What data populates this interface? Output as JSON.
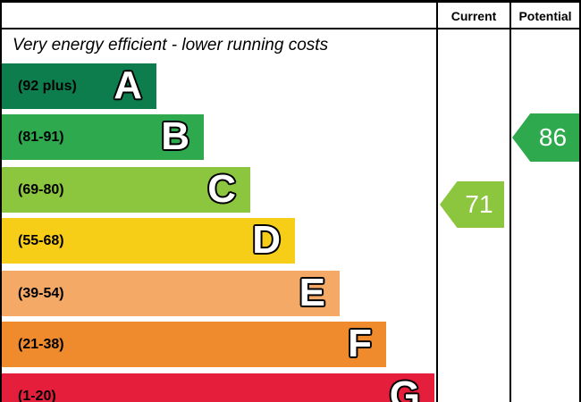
{
  "header": {
    "current_label": "Current",
    "potential_label": "Potential"
  },
  "caption_top": "Very energy efficient - lower running costs",
  "bands": [
    {
      "letter": "A",
      "range": "(92 plus)",
      "color": "#0d7d4d"
    },
    {
      "letter": "B",
      "range": "(81-91)",
      "color": "#2ea94e"
    },
    {
      "letter": "C",
      "range": "(69-80)",
      "color": "#8cc63f"
    },
    {
      "letter": "D",
      "range": "(55-68)",
      "color": "#f7ce17"
    },
    {
      "letter": "E",
      "range": "(39-54)",
      "color": "#f4a967"
    },
    {
      "letter": "F",
      "range": "(21-38)",
      "color": "#ef8a2d"
    },
    {
      "letter": "G",
      "range": "(1-20)",
      "color": "#e51e3c"
    }
  ],
  "current": {
    "value": "71",
    "color": "#8cc63f",
    "band": "C"
  },
  "potential": {
    "value": "86",
    "color": "#2ea94e",
    "band": "B"
  },
  "chart_data": {
    "type": "bar",
    "subtype": "epc-energy-efficiency-rating",
    "orientation": "horizontal",
    "top_caption": "Very energy efficient - lower running costs",
    "columns": [
      "Current",
      "Potential"
    ],
    "categories": [
      "A",
      "B",
      "C",
      "D",
      "E",
      "F",
      "G"
    ],
    "band_ranges": [
      "92 plus",
      "81-91",
      "69-80",
      "55-68",
      "39-54",
      "21-38",
      "1-20"
    ],
    "band_colors": [
      "#0d7d4d",
      "#2ea94e",
      "#8cc63f",
      "#f7ce17",
      "#f4a967",
      "#ef8a2d",
      "#e51e3c"
    ],
    "bar_widths_relative": [
      0.36,
      0.47,
      0.58,
      0.68,
      0.78,
      0.89,
      1.0
    ],
    "scale": [
      1,
      100
    ],
    "current": {
      "value": 71,
      "band": "C"
    },
    "potential": {
      "value": 86,
      "band": "B"
    },
    "legend_position": "none",
    "grid": false
  }
}
